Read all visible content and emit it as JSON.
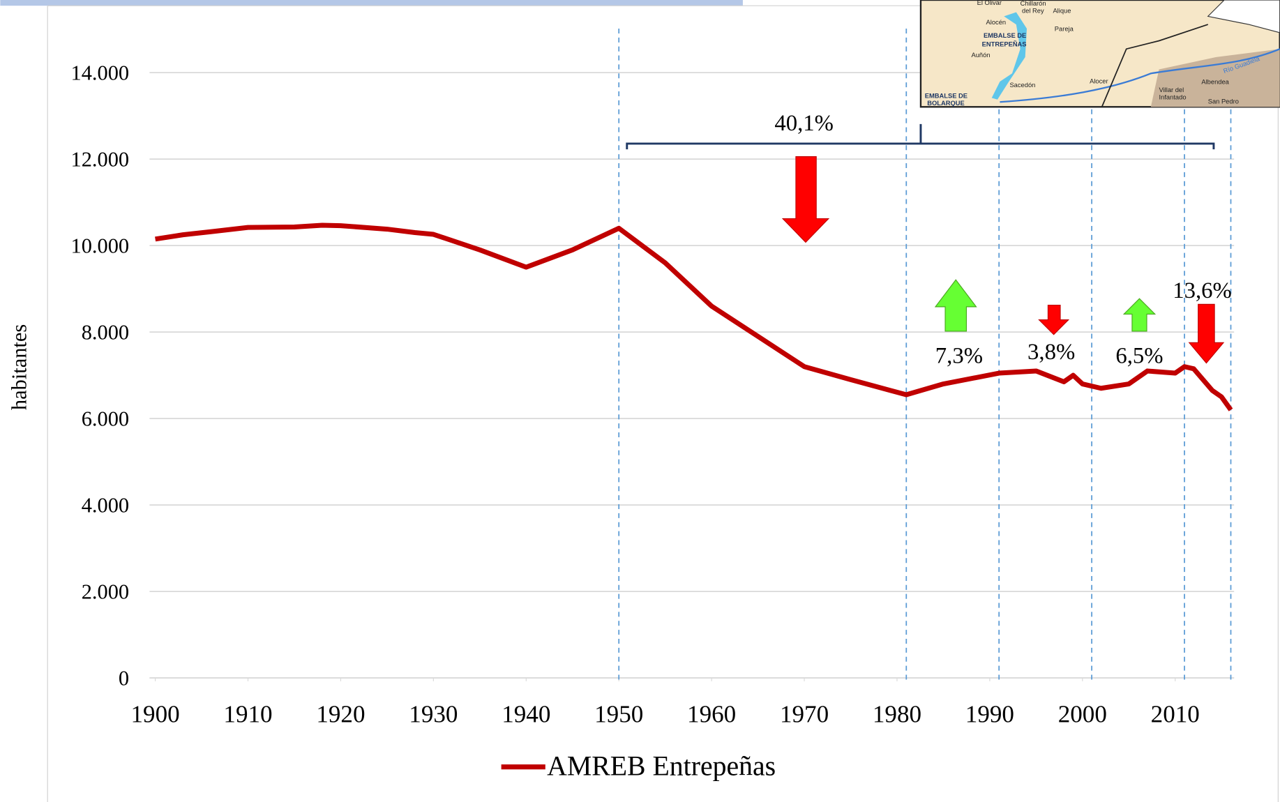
{
  "chart_data": {
    "type": "line",
    "y_label": "habitantes",
    "x": [
      1900,
      1903,
      1906,
      1910,
      1915,
      1918,
      1920,
      1925,
      1928,
      1930,
      1935,
      1940,
      1945,
      1950,
      1955,
      1960,
      1965,
      1970,
      1975,
      1981,
      1985,
      1991,
      1995,
      1998,
      1999,
      2000,
      2002,
      2005,
      2007,
      2010,
      2011,
      2012,
      2014,
      2015,
      2016
    ],
    "series": [
      {
        "name": "AMREB  Entrepeñas",
        "color": "#c00000",
        "values": [
          10150,
          10250,
          10320,
          10420,
          10430,
          10470,
          10460,
          10380,
          10300,
          10260,
          9900,
          9500,
          9900,
          10400,
          9600,
          8600,
          7900,
          7200,
          6900,
          6550,
          6800,
          7050,
          7100,
          6850,
          7000,
          6800,
          6700,
          6800,
          7100,
          7050,
          7200,
          7150,
          6650,
          6500,
          6200
        ]
      }
    ],
    "xlim": [
      1900,
      2016
    ],
    "xticks": [
      1900,
      1910,
      1920,
      1930,
      1940,
      1950,
      1960,
      1970,
      1980,
      1990,
      2000,
      2010
    ],
    "ylim": [
      0,
      14000
    ],
    "yticks": [
      {
        "value": 0,
        "label": "0"
      },
      {
        "value": 2000,
        "label": "2.000"
      },
      {
        "value": 4000,
        "label": "4.000"
      },
      {
        "value": 6000,
        "label": "6.000"
      },
      {
        "value": 8000,
        "label": "8.000"
      },
      {
        "value": 10000,
        "label": "10.000"
      },
      {
        "value": 12000,
        "label": "12.000"
      },
      {
        "value": 14000,
        "label": "14.000"
      }
    ],
    "grid": true,
    "reference_years": [
      1950,
      1981,
      1991,
      2001,
      2011,
      2016
    ],
    "annotations": [
      "40,1%",
      "7,3%",
      "3,8%",
      "6,5%",
      "13,6%"
    ],
    "legend": "bottom"
  },
  "map_labels": [
    "El Olivar",
    "Chillarón",
    "del Rey",
    "Alique",
    "Alocén",
    "Pareja",
    "EMBALSE DE",
    "ENTREPEÑAS",
    "Auñón",
    "Sacedón",
    "Alocer",
    "Villar del",
    "Infantado",
    "Albendea",
    "San Pedro",
    "EMBALSE DE",
    "BOLARQUE",
    "Río Guadiela"
  ]
}
